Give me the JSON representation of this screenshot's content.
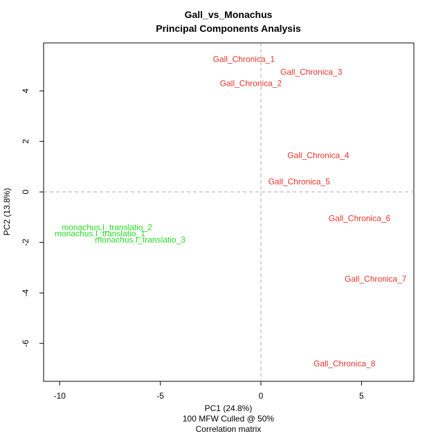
{
  "chart_data": {
    "type": "scatter",
    "title": "Gall_vs_Monachus",
    "subtitle": "Principal Components Analysis",
    "xlabel": "PC1 (24.8%)",
    "xlabel_line2": "100 MFW  Culled @ 50%",
    "xlabel_line3": "Correlation matrix",
    "ylabel": "PC2 (13.8%)",
    "xlim": [
      -10.8,
      7.6
    ],
    "ylim": [
      -7.5,
      5.9
    ],
    "xticks": [
      -10,
      -5,
      0,
      5
    ],
    "yticks": [
      -6,
      -4,
      -2,
      0,
      2,
      4
    ],
    "xtick_labels": [
      "-10",
      "-5",
      "0",
      "5"
    ],
    "ytick_labels": [
      "-6",
      "-4",
      "-2",
      "0",
      "2",
      "4"
    ],
    "reference_lines": {
      "x": 0,
      "y": 0,
      "style": "dashed",
      "color": "#aaaaaa"
    },
    "grid": false,
    "points": [
      {
        "label": "Gall_Chronica_1",
        "x": -0.85,
        "y": 5.25,
        "color": "#e8332b"
      },
      {
        "label": "Gall_Chronica_3",
        "x": 2.5,
        "y": 4.75,
        "color": "#e8332b"
      },
      {
        "label": "Gall_Chronica_2",
        "x": -0.5,
        "y": 4.3,
        "color": "#e8332b"
      },
      {
        "label": "Gall_Chronica_4",
        "x": 2.85,
        "y": 1.45,
        "color": "#e8332b"
      },
      {
        "label": "Gall_Chronica_5",
        "x": 1.9,
        "y": 0.4,
        "color": "#e8332b"
      },
      {
        "label": "Gall_Chronica_6",
        "x": 4.9,
        "y": -1.05,
        "color": "#e8332b"
      },
      {
        "label": "Gall_Chronica_7",
        "x": 5.7,
        "y": -3.45,
        "color": "#e8332b"
      },
      {
        "label": "Gall_Chronica_8",
        "x": 4.15,
        "y": -6.8,
        "color": "#e8332b"
      },
      {
        "label": "monachus.I_translatio_2",
        "x": -7.65,
        "y": -1.4,
        "color": "#22dd22"
      },
      {
        "label": "monachus.I_translatio_1",
        "x": -8.0,
        "y": -1.65,
        "color": "#22dd22"
      },
      {
        "label": "monachus.I_translatio_3",
        "x": -6.0,
        "y": -1.9,
        "color": "#22dd22"
      }
    ]
  }
}
